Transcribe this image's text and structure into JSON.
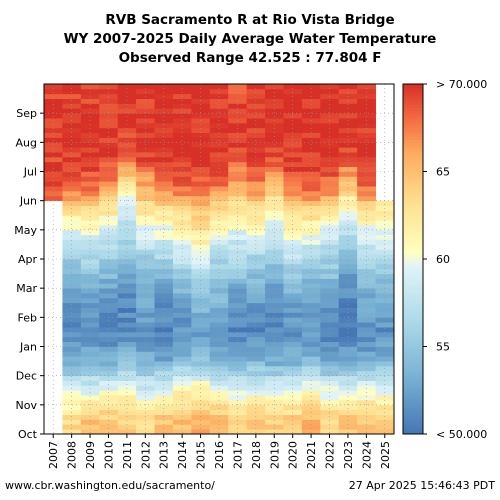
{
  "chart_data": {
    "type": "heatmap",
    "title_lines": [
      "RVB Sacramento R at Rio Vista Bridge",
      "WY 2007-2025 Daily Average Water Temperature",
      "Observed Range 42.525 : 77.804 F"
    ],
    "xlabel": "",
    "ylabel": "",
    "x": [
      "2007",
      "2008",
      "2009",
      "2010",
      "2011",
      "2012",
      "2013",
      "2014",
      "2015",
      "2016",
      "2017",
      "2018",
      "2019",
      "2020",
      "2021",
      "2022",
      "2023",
      "2024",
      "2025"
    ],
    "y": [
      "Oct",
      "Nov",
      "Dec",
      "Jan",
      "Feb",
      "Mar",
      "Apr",
      "May",
      "Jun",
      "Jul",
      "Aug",
      "Sep"
    ],
    "colorbar": {
      "ticks": [
        {
          "value": 70,
          "label": "> 70.000"
        },
        {
          "value": 65,
          "label": "65"
        },
        {
          "value": 60,
          "label": "60"
        },
        {
          "value": 55,
          "label": "55"
        },
        {
          "value": 50,
          "label": "< 50.000"
        }
      ],
      "range": [
        50,
        70
      ],
      "colormap": "red-yellow-blue (reversed)"
    },
    "grid": true,
    "monthly_means": [
      [
        null,
        null,
        null,
        null,
        null,
        null,
        null,
        null,
        68.5,
        69.5,
        70.0,
        69.5
      ],
      [
        63.5,
        59.0,
        53.5,
        51.0,
        51.5,
        54.0,
        57.5,
        62.0,
        68.5,
        70.0,
        70.0,
        69.5
      ],
      [
        65.0,
        59.5,
        53.0,
        51.5,
        51.5,
        54.5,
        58.0,
        62.5,
        68.0,
        70.0,
        70.0,
        69.5
      ],
      [
        64.5,
        60.0,
        53.5,
        51.0,
        51.5,
        54.0,
        57.5,
        61.5,
        66.5,
        69.5,
        70.0,
        69.0
      ],
      [
        64.0,
        60.0,
        54.0,
        51.5,
        51.0,
        53.5,
        55.5,
        58.5,
        62.5,
        67.5,
        70.0,
        70.0
      ],
      [
        63.5,
        59.0,
        53.5,
        51.5,
        52.5,
        53.5,
        57.5,
        61.5,
        66.0,
        69.5,
        70.0,
        69.5
      ],
      [
        64.5,
        60.0,
        53.0,
        51.0,
        51.5,
        54.5,
        58.0,
        62.0,
        67.0,
        70.0,
        70.0,
        69.5
      ],
      [
        65.0,
        61.0,
        54.5,
        51.5,
        53.0,
        55.5,
        59.0,
        63.5,
        68.0,
        70.0,
        70.0,
        70.0
      ],
      [
        66.0,
        61.5,
        55.0,
        52.5,
        54.5,
        57.0,
        61.0,
        64.5,
        68.0,
        70.0,
        70.0,
        70.0
      ],
      [
        65.5,
        60.5,
        54.0,
        52.0,
        53.5,
        55.0,
        58.5,
        62.5,
        68.0,
        70.0,
        70.0,
        70.0
      ],
      [
        63.5,
        59.5,
        53.0,
        51.0,
        51.5,
        55.0,
        57.5,
        61.5,
        65.5,
        69.0,
        70.0,
        69.0
      ],
      [
        64.5,
        60.0,
        53.5,
        51.0,
        52.0,
        54.5,
        58.0,
        62.5,
        67.0,
        70.0,
        70.0,
        70.0
      ],
      [
        64.0,
        59.5,
        53.0,
        51.0,
        51.5,
        54.0,
        56.5,
        60.5,
        64.5,
        69.0,
        70.0,
        70.0
      ],
      [
        64.0,
        60.0,
        53.5,
        51.5,
        52.5,
        55.5,
        59.0,
        63.0,
        68.5,
        70.0,
        70.0,
        70.0
      ],
      [
        65.5,
        60.5,
        54.0,
        51.5,
        52.5,
        54.0,
        58.5,
        63.0,
        68.5,
        70.0,
        70.0,
        70.0
      ],
      [
        64.0,
        59.5,
        53.0,
        51.0,
        51.5,
        54.5,
        57.5,
        62.0,
        68.0,
        70.0,
        70.0,
        70.0
      ],
      [
        65.0,
        59.5,
        52.5,
        51.0,
        51.0,
        52.5,
        55.5,
        59.5,
        64.5,
        69.0,
        70.0,
        70.0
      ],
      [
        64.5,
        60.0,
        53.0,
        51.5,
        52.5,
        55.0,
        58.5,
        62.0,
        68.0,
        70.0,
        70.0,
        70.0
      ],
      [
        64.5,
        60.0,
        53.5,
        51.5,
        52.5,
        55.0,
        58.5,
        62.0,
        null,
        null,
        null,
        null
      ]
    ]
  },
  "footer": {
    "url": "www.cbr.washington.edu/sacramento/",
    "timestamp": "27 Apr 2025 15:46:43 PDT"
  }
}
